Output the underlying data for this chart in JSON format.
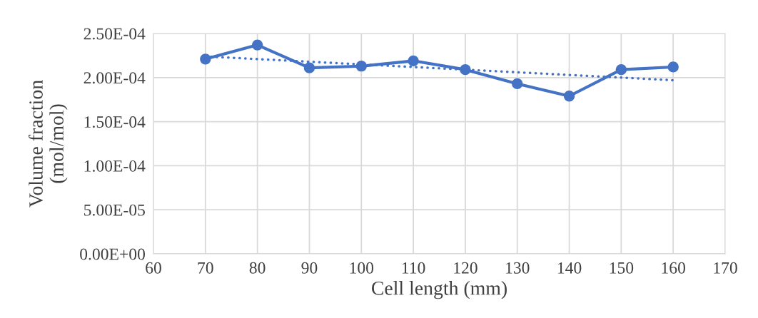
{
  "chart_data": {
    "type": "line",
    "xlabel": "Cell length (mm)",
    "ylabel": "Volume fraction\n(mol/mol)",
    "x": [
      70,
      80,
      90,
      100,
      110,
      120,
      130,
      140,
      150,
      160
    ],
    "series": [
      {
        "color": "#4472c4",
        "marker": "circle",
        "line_style": "solid",
        "values": [
          0.000221,
          0.000237,
          0.000211,
          0.000213,
          0.000219,
          0.000209,
          0.000193,
          0.000179,
          0.000209,
          0.000212
        ]
      },
      {
        "color": "#4472c4",
        "marker": "none",
        "line_style": "dotted",
        "x": [
          70,
          160
        ],
        "values": [
          0.000224,
          0.000197
        ]
      }
    ],
    "xlim": [
      60,
      170
    ],
    "xticks": [
      60,
      70,
      80,
      90,
      100,
      110,
      120,
      130,
      140,
      150,
      160,
      170
    ],
    "ylim": [
      0,
      0.00025
    ],
    "yticks": [
      {
        "value": 0,
        "label": "0.00E+00"
      },
      {
        "value": 5e-05,
        "label": "5.00E-05"
      },
      {
        "value": 0.0001,
        "label": "1.00E-04"
      },
      {
        "value": 0.00015,
        "label": "1.50E-04"
      },
      {
        "value": 0.0002,
        "label": "2.00E-04"
      },
      {
        "value": 0.00025,
        "label": "2.50E-04"
      }
    ],
    "grid": true,
    "legend": false
  }
}
